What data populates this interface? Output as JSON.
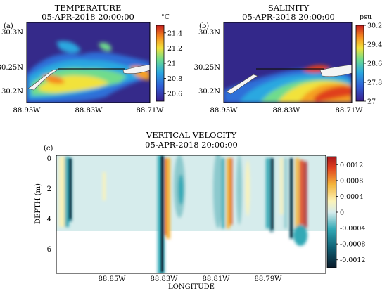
{
  "chart_data": [
    {
      "panel": "(a)",
      "type": "heatmap",
      "title": "TEMPERATURE",
      "subtitle": "05-APR-2018 20:00:00",
      "unit": "°C",
      "x_ticks": [
        "88.95W",
        "88.83W",
        "88.71W"
      ],
      "y_ticks": [
        "30.3N",
        "30.25N",
        "30.2N"
      ],
      "colorbar_ticks": [
        "21.4",
        "21.2",
        "21",
        "20.8",
        "20.6"
      ],
      "colorbar_range": [
        20.5,
        21.5
      ]
    },
    {
      "panel": "(b)",
      "type": "heatmap",
      "title": "SALINITY",
      "subtitle": "05-APR-2018 20:00:00",
      "unit": "psu",
      "x_ticks": [
        "88.95W",
        "88.83W",
        "88.71W"
      ],
      "y_ticks": [
        "30.3N",
        "30.25N",
        "30.2N"
      ],
      "colorbar_ticks": [
        "30.2",
        "29.4",
        "28.6",
        "27.8",
        "27"
      ],
      "colorbar_range": [
        27,
        30.2
      ]
    },
    {
      "panel": "(c)",
      "type": "heatmap",
      "title": "VERTICAL VELOCITY",
      "subtitle": "05-APR-2018 20:00:00",
      "xlabel": "LONGITUDE",
      "ylabel": "DEPTH (m)",
      "x_ticks": [
        "88.85W",
        "88.83W",
        "88.81W",
        "88.79W"
      ],
      "y_ticks": [
        "0",
        "2",
        "4",
        "6"
      ],
      "ylim": [
        7.8,
        0
      ],
      "colorbar_ticks": [
        "0.0012",
        "0.0008",
        "0.0004",
        "0",
        "-0.0004",
        "-0.0008",
        "-0.0012"
      ],
      "colorbar_range": [
        -0.0014,
        0.0014
      ]
    }
  ]
}
